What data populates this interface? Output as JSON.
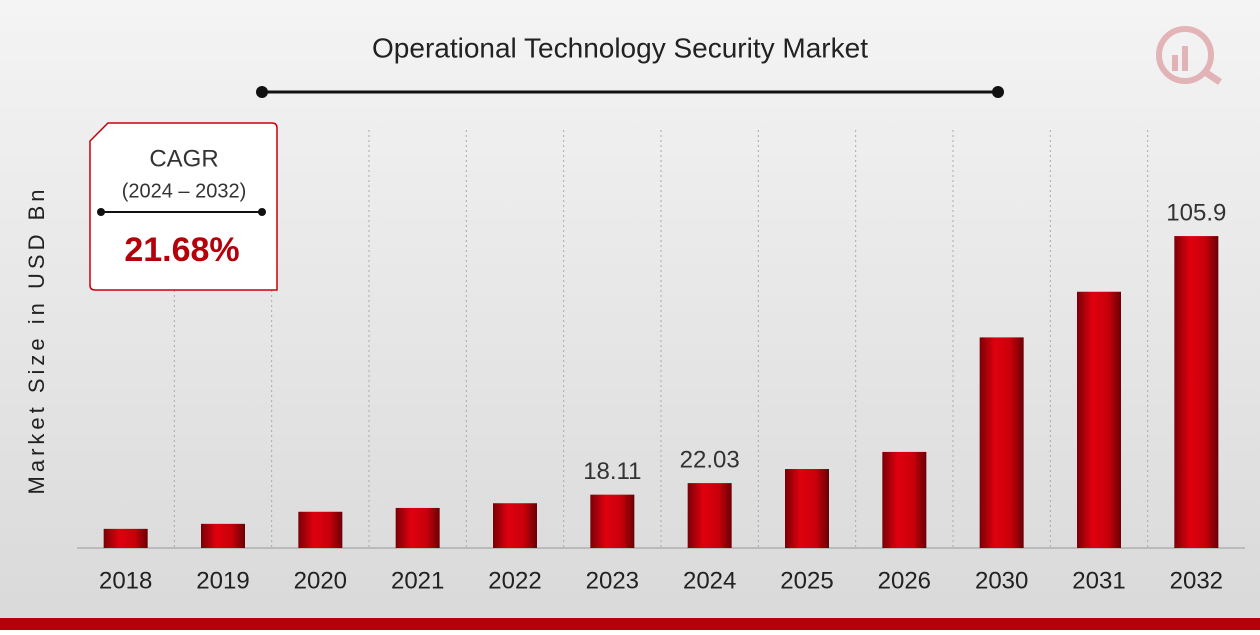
{
  "chart_data": {
    "type": "bar",
    "title": "Operational Technology Security Market",
    "y_label": "Market Size in USD Bn",
    "categories": [
      "2018",
      "2019",
      "2020",
      "2021",
      "2022",
      "2023",
      "2024",
      "2025",
      "2026",
      "2030",
      "2031",
      "2032"
    ],
    "values": [
      6.5,
      8.2,
      12.3,
      13.6,
      15.2,
      18.11,
      22.03,
      26.81,
      32.62,
      71.5,
      87.0,
      105.9
    ],
    "value_labels": [
      null,
      null,
      null,
      null,
      null,
      "18.11",
      "22.03",
      null,
      null,
      null,
      null,
      "105.9"
    ],
    "color": "#c8000a",
    "ylim": [
      0,
      110
    ],
    "cagr": {
      "heading": "CAGR",
      "period": "(2024 – 2032)",
      "value": "21.68%"
    }
  }
}
